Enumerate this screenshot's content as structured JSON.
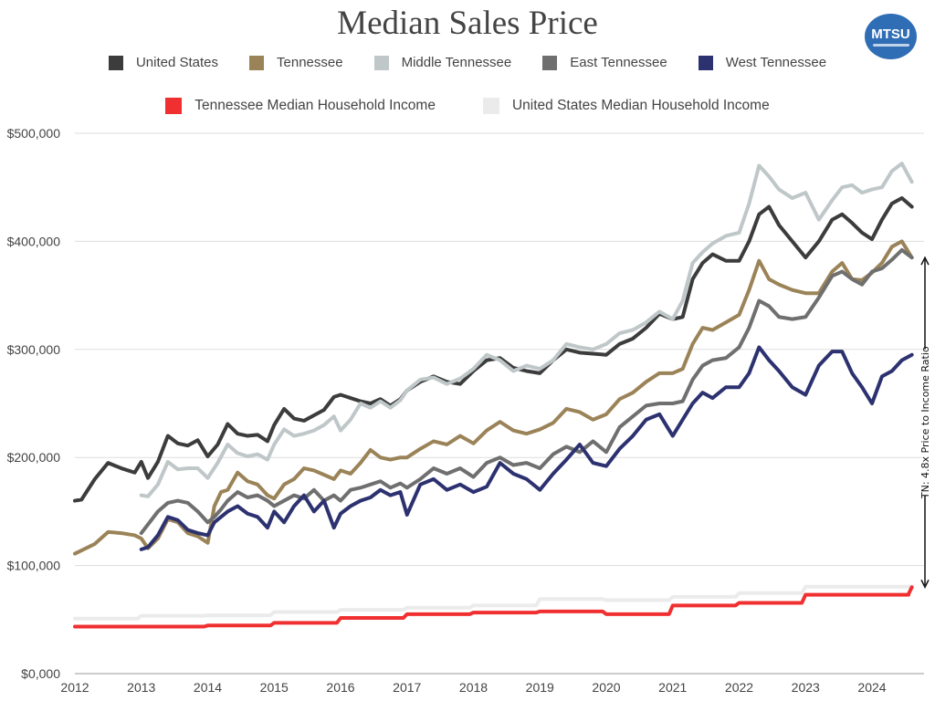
{
  "logo": {
    "text": "MTSU"
  },
  "chart_data": {
    "type": "line",
    "title": "Median Sales Price",
    "xlabel": "",
    "ylabel": "",
    "xlim": [
      2012,
      2024.65
    ],
    "ylim": [
      0,
      500000
    ],
    "grid": true,
    "x_ticks": [
      "2012",
      "2013",
      "2014",
      "2015",
      "2016",
      "2017",
      "2018",
      "2019",
      "2020",
      "2021",
      "2022",
      "2023",
      "2024"
    ],
    "y_ticks": [
      {
        "value": 0,
        "label": "$0,000"
      },
      {
        "value": 100000,
        "label": "$100,000"
      },
      {
        "value": 200000,
        "label": "$200,000"
      },
      {
        "value": 300000,
        "label": "$300,000"
      },
      {
        "value": 400000,
        "label": "$400,000"
      },
      {
        "value": 500000,
        "label": "$500,000"
      }
    ],
    "legend_placement": "top-center",
    "series": [
      {
        "name": "United States Median Household Income",
        "color": "#ebebeb",
        "step": true,
        "x": [
          2012,
          2013,
          2014,
          2015,
          2016,
          2017,
          2018,
          2019,
          2020,
          2021,
          2022,
          2023,
          2024,
          2024.6
        ],
        "values": [
          51000,
          53500,
          54000,
          57000,
          59000,
          61000,
          63000,
          69000,
          68000,
          71000,
          74500,
          80500,
          80500,
          80500
        ]
      },
      {
        "name": "Tennessee Median Household Income",
        "color": "#f03030",
        "step": true,
        "x": [
          2012,
          2013,
          2014,
          2015,
          2016,
          2017,
          2018,
          2019,
          2020,
          2021,
          2022,
          2023,
          2024,
          2024.55,
          2024.6
        ],
        "values": [
          43500,
          43500,
          44500,
          47000,
          51500,
          55000,
          56500,
          57500,
          55000,
          63000,
          65500,
          73000,
          73000,
          73000,
          80000
        ]
      },
      {
        "name": "United States",
        "color": "#3c3c3c",
        "x": [
          2012,
          2012.1,
          2012.3,
          2012.5,
          2012.7,
          2012.9,
          2013.0,
          2013.1,
          2013.25,
          2013.4,
          2013.55,
          2013.7,
          2013.85,
          2014.0,
          2014.15,
          2014.3,
          2014.45,
          2014.6,
          2014.75,
          2014.9,
          2015.0,
          2015.15,
          2015.3,
          2015.45,
          2015.6,
          2015.75,
          2015.9,
          2016.0,
          2016.15,
          2016.3,
          2016.45,
          2016.6,
          2016.75,
          2016.9,
          2017.0,
          2017.2,
          2017.4,
          2017.6,
          2017.8,
          2018.0,
          2018.2,
          2018.4,
          2018.6,
          2018.8,
          2019.0,
          2019.2,
          2019.4,
          2019.6,
          2019.8,
          2020.0,
          2020.2,
          2020.4,
          2020.6,
          2020.8,
          2021.0,
          2021.15,
          2021.3,
          2021.45,
          2021.6,
          2021.8,
          2022.0,
          2022.15,
          2022.3,
          2022.45,
          2022.6,
          2022.8,
          2023.0,
          2023.2,
          2023.4,
          2023.55,
          2023.7,
          2023.85,
          2024.0,
          2024.15,
          2024.3,
          2024.45,
          2024.6
        ],
        "values": [
          160000,
          161000,
          180000,
          195000,
          190000,
          186000,
          196000,
          181000,
          196000,
          220000,
          213000,
          211000,
          216000,
          201000,
          212000,
          231000,
          222000,
          220000,
          221000,
          215000,
          230000,
          245000,
          236000,
          234000,
          239000,
          244000,
          256000,
          258000,
          255000,
          252000,
          250000,
          254000,
          248000,
          254000,
          262000,
          270000,
          275000,
          270000,
          268000,
          280000,
          290000,
          292000,
          283000,
          280000,
          278000,
          290000,
          300000,
          297000,
          296000,
          295000,
          305000,
          310000,
          320000,
          333000,
          328000,
          330000,
          365000,
          380000,
          388000,
          382000,
          382000,
          400000,
          425000,
          432000,
          415000,
          400000,
          385000,
          400000,
          420000,
          425000,
          417000,
          408000,
          402000,
          420000,
          435000,
          440000,
          432000
        ]
      },
      {
        "name": "Middle Tennessee",
        "color": "#bfc7c9",
        "x": [
          2013,
          2013.1,
          2013.25,
          2013.4,
          2013.55,
          2013.7,
          2013.85,
          2014.0,
          2014.15,
          2014.3,
          2014.45,
          2014.6,
          2014.75,
          2014.9,
          2015.0,
          2015.15,
          2015.3,
          2015.45,
          2015.6,
          2015.75,
          2015.9,
          2016.0,
          2016.15,
          2016.3,
          2016.45,
          2016.6,
          2016.75,
          2016.9,
          2017.0,
          2017.2,
          2017.4,
          2017.6,
          2017.8,
          2018.0,
          2018.2,
          2018.4,
          2018.6,
          2018.8,
          2019.0,
          2019.2,
          2019.4,
          2019.6,
          2019.8,
          2020.0,
          2020.2,
          2020.4,
          2020.6,
          2020.8,
          2021.0,
          2021.15,
          2021.3,
          2021.45,
          2021.6,
          2021.8,
          2022.0,
          2022.15,
          2022.3,
          2022.45,
          2022.6,
          2022.8,
          2023.0,
          2023.2,
          2023.4,
          2023.55,
          2023.7,
          2023.85,
          2024.0,
          2024.15,
          2024.3,
          2024.45,
          2024.6
        ],
        "values": [
          165000,
          164000,
          175000,
          196000,
          189000,
          190000,
          190000,
          181000,
          195000,
          212000,
          204000,
          201000,
          203000,
          198000,
          212000,
          226000,
          220000,
          222000,
          225000,
          230000,
          238000,
          225000,
          235000,
          250000,
          246000,
          252000,
          246000,
          253000,
          262000,
          272000,
          274000,
          268000,
          273000,
          282000,
          295000,
          290000,
          280000,
          285000,
          282000,
          290000,
          305000,
          302000,
          300000,
          305000,
          315000,
          318000,
          325000,
          335000,
          328000,
          345000,
          380000,
          390000,
          398000,
          405000,
          408000,
          435000,
          470000,
          460000,
          448000,
          440000,
          445000,
          420000,
          438000,
          450000,
          452000,
          445000,
          448000,
          450000,
          465000,
          472000,
          455000
        ]
      },
      {
        "name": "Tennessee",
        "color": "#9b8358",
        "x": [
          2012,
          2012.1,
          2012.3,
          2012.5,
          2012.7,
          2012.9,
          2013.0,
          2013.1,
          2013.25,
          2013.4,
          2013.55,
          2013.7,
          2013.85,
          2014.0,
          2014.1,
          2014.2,
          2014.3,
          2014.45,
          2014.6,
          2014.75,
          2014.9,
          2015.0,
          2015.15,
          2015.3,
          2015.45,
          2015.6,
          2015.75,
          2015.9,
          2016.0,
          2016.15,
          2016.3,
          2016.45,
          2016.6,
          2016.75,
          2016.9,
          2017.0,
          2017.2,
          2017.4,
          2017.6,
          2017.8,
          2018.0,
          2018.2,
          2018.4,
          2018.6,
          2018.8,
          2019.0,
          2019.2,
          2019.4,
          2019.6,
          2019.8,
          2020.0,
          2020.2,
          2020.4,
          2020.6,
          2020.8,
          2021.0,
          2021.15,
          2021.3,
          2021.45,
          2021.6,
          2021.8,
          2022.0,
          2022.15,
          2022.3,
          2022.45,
          2022.6,
          2022.8,
          2023.0,
          2023.2,
          2023.4,
          2023.55,
          2023.7,
          2023.85,
          2024.0,
          2024.15,
          2024.3,
          2024.45,
          2024.6
        ],
        "values": [
          111000,
          114000,
          120000,
          131000,
          130000,
          128000,
          125000,
          116000,
          125000,
          143000,
          140000,
          130000,
          127000,
          121000,
          155000,
          168000,
          170000,
          186000,
          178000,
          175000,
          165000,
          162000,
          175000,
          180000,
          190000,
          188000,
          184000,
          180000,
          188000,
          185000,
          195000,
          207000,
          200000,
          198000,
          200000,
          200000,
          208000,
          215000,
          212000,
          220000,
          213000,
          225000,
          233000,
          225000,
          222000,
          226000,
          232000,
          245000,
          242000,
          235000,
          240000,
          254000,
          260000,
          270000,
          278000,
          278000,
          282000,
          305000,
          320000,
          318000,
          325000,
          332000,
          355000,
          382000,
          365000,
          360000,
          355000,
          352000,
          352000,
          372000,
          380000,
          365000,
          364000,
          371000,
          380000,
          395000,
          400000,
          385000
        ]
      },
      {
        "name": "East Tennessee",
        "color": "#6f6f6f",
        "x": [
          2013,
          2013.1,
          2013.25,
          2013.4,
          2013.55,
          2013.7,
          2013.85,
          2014.0,
          2014.1,
          2014.2,
          2014.3,
          2014.45,
          2014.6,
          2014.75,
          2014.9,
          2015.0,
          2015.15,
          2015.3,
          2015.45,
          2015.6,
          2015.75,
          2015.9,
          2016.0,
          2016.15,
          2016.3,
          2016.45,
          2016.6,
          2016.75,
          2016.9,
          2017.0,
          2017.2,
          2017.4,
          2017.6,
          2017.8,
          2018.0,
          2018.2,
          2018.4,
          2018.6,
          2018.8,
          2019.0,
          2019.2,
          2019.4,
          2019.6,
          2019.8,
          2020.0,
          2020.2,
          2020.4,
          2020.6,
          2020.8,
          2021.0,
          2021.15,
          2021.3,
          2021.45,
          2021.6,
          2021.8,
          2022.0,
          2022.15,
          2022.3,
          2022.45,
          2022.6,
          2022.8,
          2023.0,
          2023.2,
          2023.4,
          2023.55,
          2023.7,
          2023.85,
          2024.0,
          2024.15,
          2024.3,
          2024.45,
          2024.6
        ],
        "values": [
          130000,
          138000,
          150000,
          158000,
          160000,
          158000,
          150000,
          140000,
          145000,
          152000,
          160000,
          168000,
          163000,
          165000,
          160000,
          155000,
          160000,
          165000,
          162000,
          170000,
          160000,
          165000,
          160000,
          170000,
          172000,
          175000,
          178000,
          172000,
          176000,
          172000,
          180000,
          190000,
          185000,
          190000,
          182000,
          195000,
          200000,
          193000,
          195000,
          190000,
          203000,
          210000,
          205000,
          215000,
          205000,
          228000,
          238000,
          248000,
          250000,
          250000,
          252000,
          272000,
          285000,
          290000,
          292000,
          302000,
          320000,
          345000,
          340000,
          330000,
          328000,
          330000,
          348000,
          368000,
          372000,
          365000,
          360000,
          372000,
          375000,
          383000,
          392000,
          385000
        ]
      },
      {
        "name": "West Tennessee",
        "color": "#2c3170",
        "x": [
          2013,
          2013.1,
          2013.25,
          2013.4,
          2013.55,
          2013.7,
          2013.85,
          2014.0,
          2014.1,
          2014.2,
          2014.3,
          2014.45,
          2014.6,
          2014.75,
          2014.9,
          2015.0,
          2015.15,
          2015.3,
          2015.45,
          2015.6,
          2015.75,
          2015.9,
          2016.0,
          2016.15,
          2016.3,
          2016.45,
          2016.6,
          2016.75,
          2016.9,
          2017.0,
          2017.2,
          2017.4,
          2017.6,
          2017.8,
          2018.0,
          2018.2,
          2018.4,
          2018.6,
          2018.8,
          2019.0,
          2019.2,
          2019.4,
          2019.6,
          2019.8,
          2020.0,
          2020.2,
          2020.4,
          2020.6,
          2020.8,
          2021.0,
          2021.15,
          2021.3,
          2021.45,
          2021.6,
          2021.8,
          2022.0,
          2022.15,
          2022.3,
          2022.45,
          2022.6,
          2022.8,
          2023.0,
          2023.2,
          2023.4,
          2023.55,
          2023.7,
          2023.85,
          2024.0,
          2024.15,
          2024.3,
          2024.45,
          2024.6
        ],
        "values": [
          115000,
          117000,
          128000,
          145000,
          142000,
          133000,
          130000,
          128000,
          140000,
          145000,
          150000,
          155000,
          148000,
          145000,
          135000,
          150000,
          140000,
          155000,
          165000,
          150000,
          160000,
          135000,
          148000,
          155000,
          160000,
          163000,
          170000,
          165000,
          168000,
          147000,
          175000,
          180000,
          170000,
          175000,
          168000,
          173000,
          195000,
          185000,
          180000,
          170000,
          185000,
          198000,
          212000,
          195000,
          192000,
          208000,
          220000,
          235000,
          240000,
          220000,
          235000,
          250000,
          260000,
          255000,
          265000,
          265000,
          278000,
          302000,
          290000,
          280000,
          265000,
          258000,
          285000,
          298000,
          298000,
          278000,
          265000,
          250000,
          275000,
          280000,
          290000,
          295000
        ]
      }
    ],
    "legend": {
      "row1": [
        {
          "label": "United States",
          "color": "#3c3c3c"
        },
        {
          "label": "Tennessee",
          "color": "#9b8358"
        },
        {
          "label": "Middle Tennessee",
          "color": "#bfc7c9"
        },
        {
          "label": "East Tennessee",
          "color": "#6f6f6f"
        },
        {
          "label": "West Tennessee",
          "color": "#2c3170"
        }
      ],
      "row2": [
        {
          "label": "Tennessee Median Household Income",
          "color": "#f03030"
        },
        {
          "label": "United States Median Household Income",
          "color": "#ebebeb"
        }
      ]
    },
    "annotations": [
      {
        "text": "TN: 4.8x Price to Income Ratio",
        "x": 2024.6,
        "y_from": 80000,
        "y_to": 385000,
        "orientation": "vertical"
      }
    ]
  }
}
